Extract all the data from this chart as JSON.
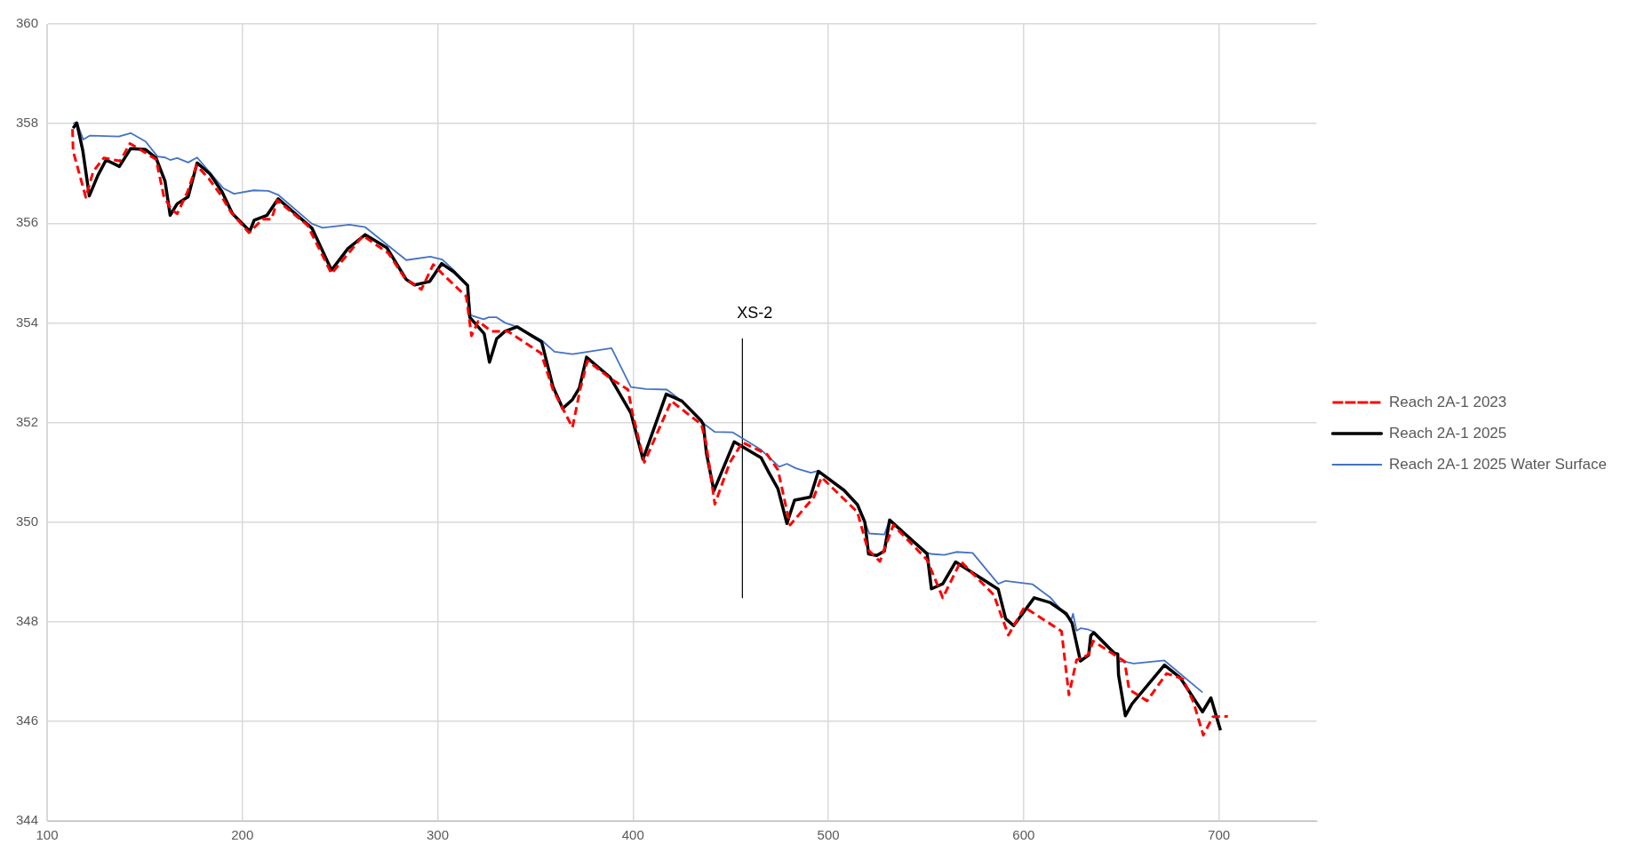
{
  "chart_data": {
    "type": "line",
    "xlim": [
      100,
      750
    ],
    "xticks": [
      100,
      200,
      300,
      400,
      500,
      600,
      700
    ],
    "ylim": [
      344,
      360
    ],
    "yticks": [
      344,
      346,
      348,
      350,
      352,
      354,
      356,
      358,
      360
    ],
    "grid": true,
    "legend": "right",
    "marker": "none",
    "annotations": [
      "XS-2"
    ],
    "series": [
      {
        "name": "Reach 2A-1 2023",
        "color": "#ff0000",
        "line_style": "dashed",
        "x": [
          113,
          113.3,
          119.8,
          123.6,
          129,
          137.4,
          142.4,
          148.9,
          155.8,
          159.7,
          163.5,
          166.6,
          171.9,
          176.5,
          182.7,
          188.8,
          194.2,
          203.4,
          210.3,
          214.9,
          217.9,
          233.3,
          245.6,
          256.3,
          261.7,
          274.7,
          283.1,
          291.6,
          297.7,
          303.8,
          314.6,
          317.3,
          320.7,
          327.6,
          336,
          352.9,
          359,
          369,
          372.9,
          376.7,
          388.2,
          397.4,
          399.7,
          405.8,
          419.6,
          435,
          437.3,
          441.9,
          449.5,
          456,
          468.6,
          474.2,
          480.4,
          492.6,
          496.5,
          514.9,
          520.2,
          526.4,
          533.3,
          550.6,
          558.6,
          567.8,
          584.7,
          592.2,
          600.4,
          619.4,
          623.2,
          627.1,
          633.3,
          635.6,
          646.3,
          651.7,
          654,
          663.2,
          673.2,
          681.6,
          687,
          692,
          696.9,
          704.6
        ],
        "values": [
          357.89,
          357.45,
          356.52,
          357.04,
          357.31,
          357.25,
          357.6,
          357.45,
          357.28,
          356.55,
          356.28,
          356.19,
          356.63,
          357.16,
          356.9,
          356.57,
          356.22,
          355.81,
          356.08,
          356.08,
          356.46,
          355.96,
          354.99,
          355.49,
          355.75,
          355.4,
          354.9,
          354.67,
          355.17,
          354.93,
          354.53,
          353.74,
          354.03,
          353.83,
          353.83,
          353.39,
          352.66,
          351.9,
          352.66,
          353.24,
          352.89,
          352.66,
          352.19,
          351.2,
          352.43,
          351.96,
          351.61,
          350.36,
          351.19,
          351.6,
          351.36,
          351.05,
          349.94,
          350.5,
          350.9,
          350.2,
          349.45,
          349.21,
          349.94,
          349.24,
          348.48,
          349.21,
          348.54,
          347.73,
          348.29,
          347.81,
          346.53,
          347.23,
          347.34,
          347.61,
          347.34,
          347.2,
          346.64,
          346.41,
          346.96,
          346.85,
          346.38,
          345.72,
          346.09,
          346.1
        ]
      },
      {
        "name": "Reach 2A-1 2025",
        "color": "#000000",
        "line_style": "solid",
        "x": [
          113.3,
          115.2,
          118.3,
          121.6,
          126,
          130.2,
          137,
          142.8,
          150.4,
          155.8,
          160.4,
          163,
          166.6,
          172.2,
          176.8,
          183.4,
          189.6,
          194.9,
          203.8,
          206,
          212.6,
          218.3,
          235.6,
          245.6,
          254,
          262.9,
          273.9,
          283.9,
          288.2,
          295.9,
          302,
          308.4,
          315.3,
          316.4,
          323.8,
          326.5,
          330.2,
          334.5,
          340.6,
          353.2,
          359,
          364,
          369,
          372.5,
          376.2,
          388.2,
          398.9,
          405.1,
          417,
          425,
          435,
          436,
          437.6,
          441.4,
          451.8,
          465.6,
          469.5,
          474.2,
          478.8,
          482.7,
          490.8,
          494.9,
          508,
          514.9,
          518.7,
          520.6,
          524.8,
          528.7,
          531.4,
          550.6,
          552.8,
          558.6,
          565.2,
          587,
          590.8,
          594.9,
          605.4,
          613.8,
          621.8,
          624.8,
          629.1,
          633.3,
          634.4,
          635.9,
          646.3,
          648.2,
          648.6,
          652.1,
          655.5,
          672.1,
          680.1,
          691.6,
          695.9,
          700.8
        ],
        "values": [
          357.91,
          358.01,
          357.45,
          356.55,
          356.96,
          357.27,
          357.14,
          357.5,
          357.48,
          357.31,
          356.84,
          356.16,
          356.39,
          356.53,
          357.21,
          356.99,
          356.63,
          356.19,
          355.84,
          356.06,
          356.16,
          356.49,
          355.9,
          355.06,
          355.49,
          355.77,
          355.51,
          354.87,
          354.76,
          354.83,
          355.19,
          355.02,
          354.75,
          354.11,
          353.78,
          353.21,
          353.68,
          353.83,
          353.92,
          353.62,
          352.72,
          352.28,
          352.46,
          352.69,
          353.31,
          352.91,
          352.19,
          351.26,
          352.57,
          352.43,
          352.03,
          351.96,
          351.38,
          350.63,
          351.61,
          351.29,
          351,
          350.67,
          349.97,
          350.44,
          350.5,
          351.02,
          350.64,
          350.35,
          350,
          349.36,
          349.33,
          349.42,
          350.04,
          349.36,
          348.66,
          348.76,
          349.2,
          348.65,
          348.06,
          347.92,
          348.48,
          348.38,
          348.16,
          347.97,
          347.21,
          347.33,
          347.72,
          347.78,
          347.37,
          347.35,
          346.93,
          346.11,
          346.35,
          347.13,
          346.88,
          346.19,
          346.47,
          345.82
        ]
      },
      {
        "name": "Reach 2A-1 2025 Water Surface",
        "color": "#4472c4",
        "line_style": "solid",
        "x": [
          113.3,
          115.2,
          118.5,
          122,
          136.7,
          142.8,
          150.4,
          156.5,
          160.4,
          163,
          166.6,
          172.2,
          176.8,
          190.3,
          195.7,
          205.7,
          213.3,
          218.3,
          235.6,
          241,
          254.8,
          262.9,
          283.9,
          296.2,
          302.3,
          308.4,
          315.3,
          316.9,
          323.5,
          326.1,
          330.2,
          334.5,
          340.6,
          353.2,
          359.8,
          369,
          389,
          398.9,
          406.6,
          417.3,
          425,
          435.7,
          441.9,
          451.1,
          465.6,
          474.8,
          478.8,
          483.4,
          491.1,
          494.9,
          508,
          514.9,
          518.7,
          521,
          528.7,
          531.4,
          550.6,
          552.5,
          559.4,
          565.5,
          573.9,
          587,
          590.8,
          604.6,
          613.8,
          621.8,
          624.5,
          625.3,
          627.1,
          629.4,
          633.3,
          636.3,
          646.3,
          648.2,
          648.6,
          651.7,
          656.3,
          672.1,
          691.6
        ],
        "values": [
          358,
          358.03,
          357.68,
          357.76,
          357.74,
          357.81,
          357.64,
          357.34,
          357.32,
          357.27,
          357.31,
          357.22,
          357.32,
          356.7,
          356.59,
          356.66,
          356.65,
          356.57,
          355.99,
          355.91,
          355.97,
          355.92,
          355.26,
          355.33,
          355.27,
          355.05,
          354.75,
          354.15,
          354.07,
          354.11,
          354.11,
          354,
          353.92,
          353.65,
          353.42,
          353.37,
          353.49,
          352.71,
          352.67,
          352.66,
          352.43,
          351.99,
          351.81,
          351.8,
          351.45,
          351.11,
          351.17,
          351.08,
          350.99,
          351.03,
          350.64,
          350.35,
          350,
          349.77,
          349.75,
          350.04,
          349.39,
          349.36,
          349.34,
          349.4,
          349.38,
          348.76,
          348.82,
          348.75,
          348.48,
          348.12,
          348.05,
          348.16,
          347.82,
          347.87,
          347.84,
          347.79,
          347.39,
          347.35,
          347.2,
          347.2,
          347.16,
          347.22,
          346.58
        ]
      },
      {
        "type": "line",
        "color": "#000000",
        "line_style": "solid",
        "x": [
          456,
          456
        ],
        "values": [
          353.68,
          348.48
        ]
      }
    ]
  }
}
